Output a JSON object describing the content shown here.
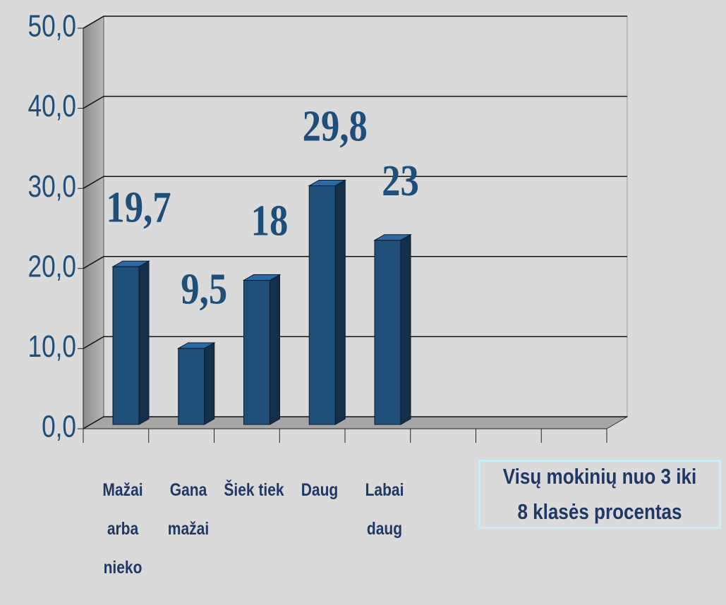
{
  "chart_data": {
    "type": "bar",
    "categories": [
      "Mažai arba nieko",
      "Gana mažai",
      "Šiek tiek",
      "Daug",
      "Labai daug",
      null,
      null,
      null
    ],
    "series": [
      {
        "name": "Visų mokinių nuo 3 iki 8 klasės procentas",
        "color": "#1f4e79",
        "values": [
          19.7,
          9.5,
          18,
          29.8,
          23,
          null,
          null,
          null
        ],
        "value_labels": [
          "19,7",
          "9,5",
          "18",
          "29,8",
          "23",
          null,
          null,
          null
        ]
      }
    ],
    "ylim": [
      0,
      50
    ],
    "yticks": [
      {
        "value": 0,
        "label": "0,0"
      },
      {
        "value": 10,
        "label": "10,0"
      },
      {
        "value": 20,
        "label": "20,0"
      },
      {
        "value": 30,
        "label": "30,0"
      },
      {
        "value": 40,
        "label": "40,0"
      },
      {
        "value": 50,
        "label": "50,0"
      }
    ],
    "grid": true
  }
}
